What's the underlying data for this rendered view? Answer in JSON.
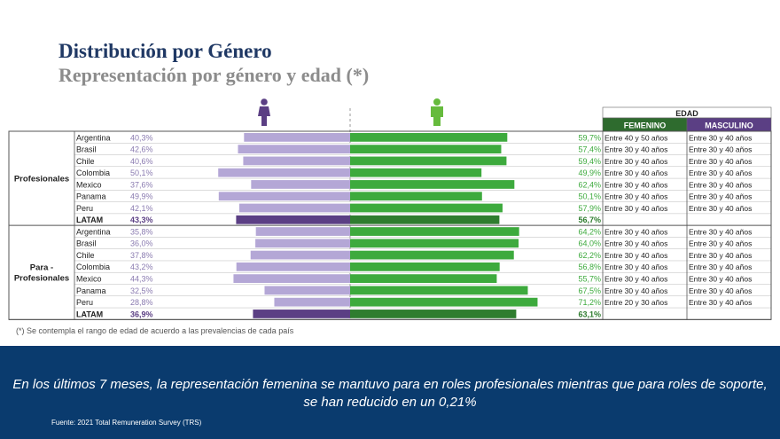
{
  "title": "Distribución por Género",
  "subtitle": "Representación por género y edad (*)",
  "footnote": "(*) Se contempla el rango de edad de acuerdo a las prevalencias de cada país",
  "banner_text": "En los últimos 7 meses, la representación femenina se mantuvo para en roles profesionales mientras que para roles de soporte, se han reducido en un 0,21%",
  "source": "Fuente: 2021 Total Remuneration Survey (TRS)",
  "colors": {
    "female": "#b4a7d6",
    "female_latam": "#5b3f84",
    "male": "#3daa3d",
    "male_latam": "#2f7d2f",
    "header_bg": "#2e6b2e",
    "banner": "#0a3b6e"
  },
  "icons": {
    "female": "woman-icon",
    "male": "man-icon"
  },
  "chart_data": {
    "type": "bar",
    "edad_header": "EDAD",
    "edad_columns": [
      "FEMENINO",
      "MASCULINO"
    ],
    "groups": [
      {
        "label": "Profesionales",
        "rows": [
          {
            "country": "Argentina",
            "female_label": "40,3%",
            "male_label": "59,7%",
            "female": 40.3,
            "male": 59.7,
            "edad_f": "Entre 40 y 50 años",
            "edad_m": "Entre 30 y 40 años"
          },
          {
            "country": "Brasil",
            "female_label": "42,6%",
            "male_label": "57,4%",
            "female": 42.6,
            "male": 57.4,
            "edad_f": "Entre 30 y 40 años",
            "edad_m": "Entre 30 y 40 años"
          },
          {
            "country": "Chile",
            "female_label": "40,6%",
            "male_label": "59,4%",
            "female": 40.6,
            "male": 59.4,
            "edad_f": "Entre 30 y 40 años",
            "edad_m": "Entre 30 y 40 años"
          },
          {
            "country": "Colombia",
            "female_label": "50,1%",
            "male_label": "49,9%",
            "female": 50.1,
            "male": 49.9,
            "edad_f": "Entre 30 y 40 años",
            "edad_m": "Entre 30 y 40 años"
          },
          {
            "country": "Mexico",
            "female_label": "37,6%",
            "male_label": "62,4%",
            "female": 37.6,
            "male": 62.4,
            "edad_f": "Entre 30 y 40 años",
            "edad_m": "Entre 30 y 40 años"
          },
          {
            "country": "Panama",
            "female_label": "49,9%",
            "male_label": "50,1%",
            "female": 49.9,
            "male": 50.1,
            "edad_f": "Entre 30 y 40 años",
            "edad_m": "Entre 30 y 40 años"
          },
          {
            "country": "Peru",
            "female_label": "42,1%",
            "male_label": "57,9%",
            "female": 42.1,
            "male": 57.9,
            "edad_f": "Entre 30 y 40 años",
            "edad_m": "Entre 30 y 40 años"
          },
          {
            "country": "LATAM",
            "female_label": "43,3%",
            "male_label": "56,7%",
            "female": 43.3,
            "male": 56.7,
            "edad_f": "",
            "edad_m": "",
            "total": true
          }
        ]
      },
      {
        "label": "Para - Profesionales",
        "label_lines": [
          "Para -",
          "Profesionales"
        ],
        "rows": [
          {
            "country": "Argentina",
            "female_label": "35,8%",
            "male_label": "64,2%",
            "female": 35.8,
            "male": 64.2,
            "edad_f": "Entre 30 y 40 años",
            "edad_m": "Entre 30 y 40 años"
          },
          {
            "country": "Brasil",
            "female_label": "36,0%",
            "male_label": "64,0%",
            "female": 36.0,
            "male": 64.0,
            "edad_f": "Entre 30 y 40 años",
            "edad_m": "Entre 30 y 40 años"
          },
          {
            "country": "Chile",
            "female_label": "37,8%",
            "male_label": "62,2%",
            "female": 37.8,
            "male": 62.2,
            "edad_f": "Entre 30 y 40 años",
            "edad_m": "Entre 30 y 40 años"
          },
          {
            "country": "Colombia",
            "female_label": "43,2%",
            "male_label": "56,8%",
            "female": 43.2,
            "male": 56.8,
            "edad_f": "Entre 30 y 40 años",
            "edad_m": "Entre 30 y 40 años"
          },
          {
            "country": "Mexico",
            "female_label": "44,3%",
            "male_label": "55,7%",
            "female": 44.3,
            "male": 55.7,
            "edad_f": "Entre 30 y 40 años",
            "edad_m": "Entre 30 y 40 años"
          },
          {
            "country": "Panama",
            "female_label": "32,5%",
            "male_label": "67,5%",
            "female": 32.5,
            "male": 67.5,
            "edad_f": "Entre 30 y 40 años",
            "edad_m": "Entre 30 y 40 años"
          },
          {
            "country": "Peru",
            "female_label": "28,8%",
            "male_label": "71,2%",
            "female": 28.8,
            "male": 71.2,
            "edad_f": "Entre 20 y 30 años",
            "edad_m": "Entre 30 y 40 años"
          },
          {
            "country": "LATAM",
            "female_label": "36,9%",
            "male_label": "63,1%",
            "female": 36.9,
            "male": 63.1,
            "edad_f": "",
            "edad_m": "",
            "total": true
          }
        ]
      }
    ]
  }
}
